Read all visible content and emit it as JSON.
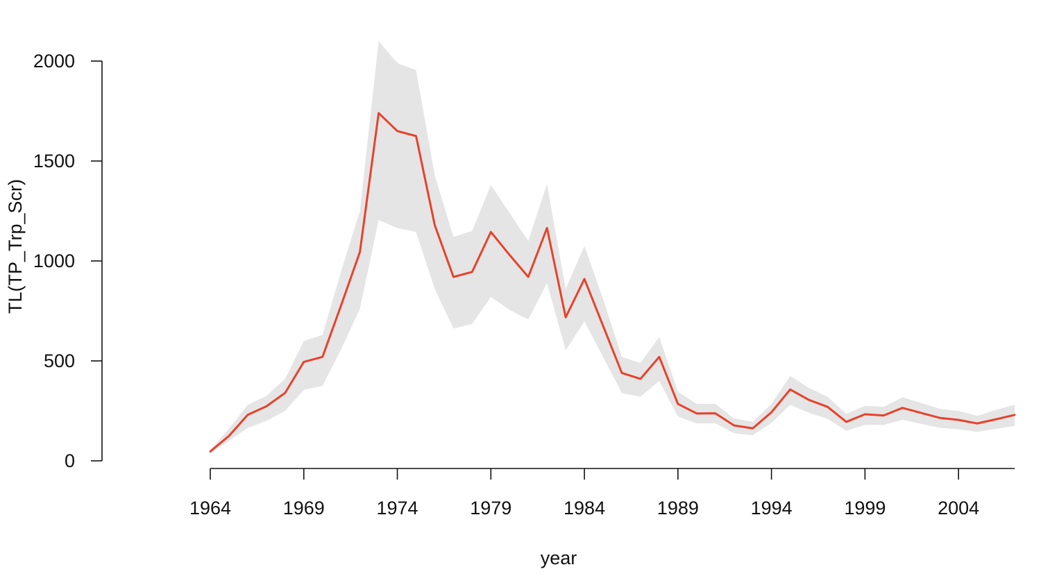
{
  "chart_data": {
    "type": "line",
    "xlabel": "year",
    "ylabel": "TL(TP_Trp_Scr)",
    "xlim": [
      1964,
      2007
    ],
    "ylim": [
      0,
      2000
    ],
    "x_ticks": [
      1964,
      1969,
      1974,
      1979,
      1984,
      1989,
      1994,
      1999,
      2004
    ],
    "y_ticks": [
      0,
      500,
      1000,
      1500,
      2000
    ],
    "grid": false,
    "colors": {
      "line": "#e8412b",
      "band": "#e5e5e5"
    },
    "x": [
      1964,
      1965,
      1966,
      1967,
      1968,
      1969,
      1970,
      1971,
      1972,
      1973,
      1974,
      1975,
      1976,
      1977,
      1978,
      1979,
      1980,
      1981,
      1982,
      1983,
      1984,
      1985,
      1986,
      1987,
      1988,
      1989,
      1990,
      1991,
      1992,
      1993,
      1994,
      1995,
      1996,
      1997,
      1998,
      1999,
      2000,
      2001,
      2002,
      2003,
      2004,
      2005,
      2006,
      2007
    ],
    "series": [
      {
        "values": [
          47,
          125,
          230,
          273,
          340,
          495,
          520,
          780,
          1045,
          1740,
          1650,
          1625,
          1180,
          920,
          945,
          1145,
          1030,
          920,
          1165,
          718,
          910,
          675,
          440,
          410,
          520,
          285,
          237,
          238,
          177,
          163,
          243,
          357,
          305,
          270,
          195,
          233,
          227,
          265,
          240,
          215,
          205,
          187,
          208,
          230
        ]
      }
    ],
    "band_upper": [
      55,
      160,
      280,
      325,
      410,
      600,
      630,
      950,
      1250,
      2100,
      1990,
      1955,
      1430,
      1120,
      1150,
      1380,
      1240,
      1100,
      1385,
      860,
      1075,
      810,
      520,
      490,
      620,
      345,
      285,
      285,
      212,
      195,
      285,
      425,
      365,
      320,
      235,
      275,
      270,
      318,
      290,
      260,
      250,
      225,
      255,
      280
    ],
    "band_lower": [
      40,
      100,
      165,
      200,
      250,
      355,
      375,
      560,
      760,
      1205,
      1165,
      1145,
      860,
      662,
      685,
      820,
      755,
      707,
      890,
      552,
      698,
      520,
      340,
      320,
      400,
      222,
      187,
      188,
      138,
      128,
      190,
      280,
      240,
      210,
      150,
      180,
      180,
      205,
      185,
      165,
      158,
      145,
      160,
      175
    ]
  }
}
